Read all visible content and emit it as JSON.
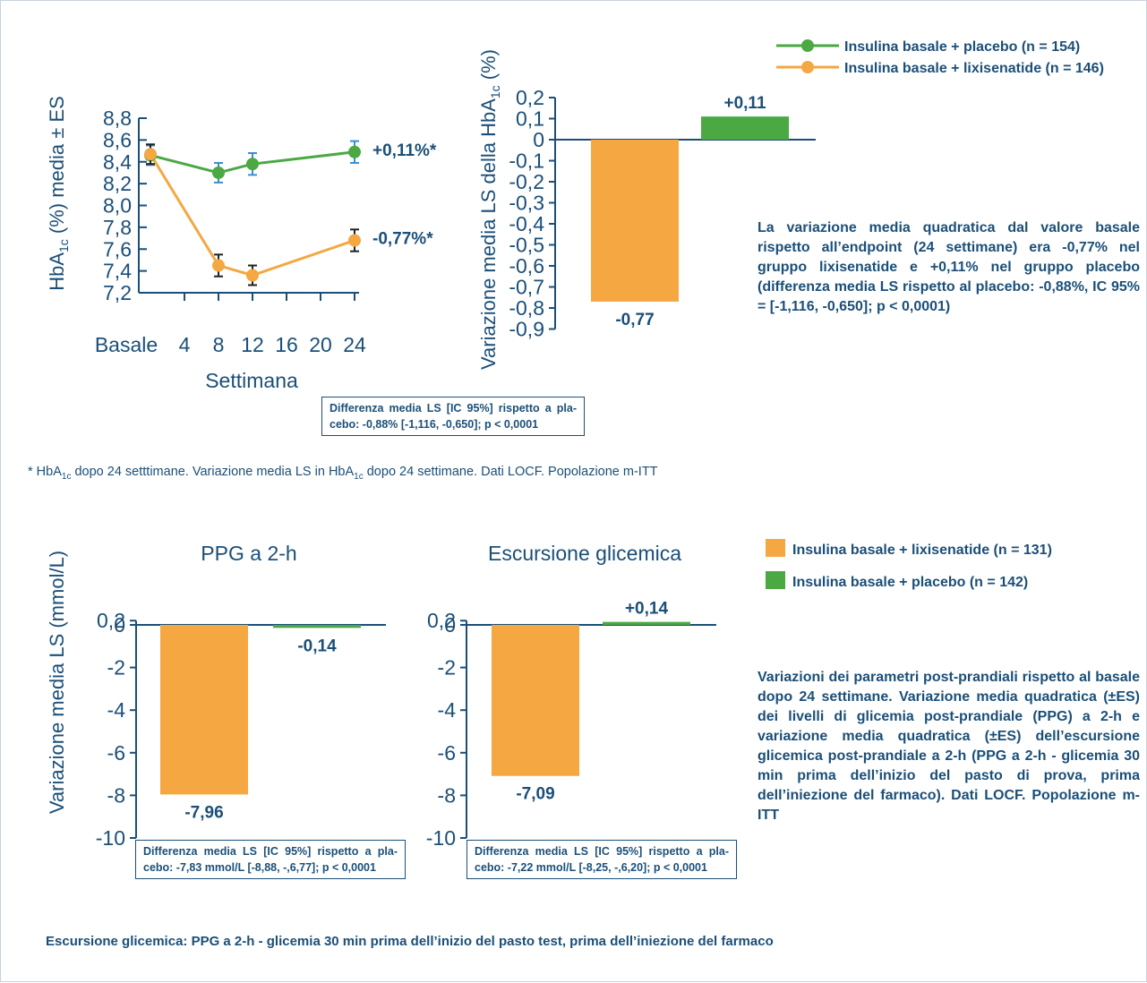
{
  "colors": {
    "green": "#4ba843",
    "orange": "#f5a742",
    "navy": "#1b4f78",
    "errbar": "#3a8fd0"
  },
  "legend_top": [
    {
      "label": "Insulina basale + placebo (n = 154)",
      "color": "#4ba843"
    },
    {
      "label": "Insulina basale + lixisenatide (n = 146)",
      "color": "#f5a742"
    }
  ],
  "legend_bottom": [
    {
      "label": "Insulina basale + lixisenatide (n = 131)",
      "color": "#f5a742"
    },
    {
      "label": "Insulina basale + placebo (n = 142)",
      "color": "#4ba843"
    }
  ],
  "chart_data": [
    {
      "type": "line",
      "xlabel": "Settimana",
      "ylabel": "HbA1c (%) media ± ES",
      "x_ticks": [
        "Basale",
        "4",
        "8",
        "12",
        "16",
        "20",
        "24"
      ],
      "y_ticks": [
        "8,8",
        "8,6",
        "8,4",
        "8,2",
        "8,0",
        "7,8",
        "7,6",
        "7,4",
        "7,2"
      ],
      "ylim": [
        7.2,
        8.8
      ],
      "xlim": [
        0,
        24
      ],
      "series": [
        {
          "name": "Insulina basale + placebo (n = 154)",
          "x": [
            0,
            8,
            12,
            24
          ],
          "y": [
            8.46,
            8.3,
            8.38,
            8.49
          ],
          "err": [
            0.09,
            0.09,
            0.1,
            0.1
          ],
          "end_label": "+0,11%*"
        },
        {
          "name": "Insulina basale + lixisenatide (n = 146)",
          "x": [
            0,
            8,
            12,
            24
          ],
          "y": [
            8.47,
            7.45,
            7.36,
            7.68
          ],
          "err": [
            0.09,
            0.1,
            0.09,
            0.1
          ],
          "end_label": "-0,77%*"
        }
      ]
    },
    {
      "type": "bar",
      "ylabel": "Variazione media LS della HbA1c (%)",
      "y_ticks": [
        "0,2",
        "0,1",
        "0",
        "-0,1",
        "-0,2",
        "-0,3",
        "-0,4",
        "-0,5",
        "-0,6",
        "-0,7",
        "-0,8",
        "-0,9"
      ],
      "ylim": [
        -0.9,
        0.2
      ],
      "values": [
        -0.77,
        0.11
      ],
      "value_labels": [
        "-0,77",
        "+0,11"
      ]
    },
    {
      "type": "bar",
      "title": "PPG a 2-h",
      "ylabel": "Variazione media LS (mmol/L)",
      "y_ticks": [
        "0,2",
        "0",
        "-2",
        "-4",
        "-6",
        "-8",
        "-10"
      ],
      "ylim": [
        -10,
        0.2
      ],
      "values": [
        -7.96,
        -0.14
      ],
      "value_labels": [
        "-7,96",
        "-0,14"
      ]
    },
    {
      "type": "bar",
      "title": "Escursione glicemica",
      "y_ticks": [
        "0,2",
        "0",
        "-2",
        "-4",
        "-6",
        "-8",
        "-10"
      ],
      "ylim": [
        -10,
        0.2
      ],
      "values": [
        -7.09,
        0.14
      ],
      "value_labels": [
        "-7,09",
        "+0,14"
      ]
    }
  ],
  "boxes": {
    "top": "Differenza media LS [IC 95%] rispetto a pla-cebo: -0,88% [-1,116, -0,650]; p < 0,0001",
    "ppg": "Differenza media LS [IC 95%] rispetto a pla-cebo: -7,83 mmol/L [-8,88, -,6,77]; p < 0,0001",
    "esc": "Differenza media LS [IC 95%] rispetto a pla-cebo: -7,22 mmol/L [-8,25, -,6,20]; p < 0,0001"
  },
  "paragraphs": {
    "top": "La variazione media quadratica dal valore basale rispetto all’endpoint (24 settimane) era -0,77% nel gruppo lixisenatide e +0,11% nel gruppo placebo (differenza media LS rispetto al placebo: -0,88%, IC 95% = [-1,116, -0,650]; p < 0,0001)",
    "bottom": "Variazioni dei parametri post-prandiali rispetto al basale dopo 24 settimane. Variazione media quadratica (±ES) dei livelli di glicemia post-prandiale (PPG) a 2-h e variazione media quadratica (±ES) dell’escursione glicemica post-prandiale a 2-h (PPG a 2-h - glicemia 30 min prima dell’inizio del pasto di prova, prima dell’iniezione del farmaco). Dati LOCF. Popolazione m-ITT"
  },
  "footnote": {
    "a": "* HbA",
    "sub1": "1c",
    "b": " dopo 24 setttimane. Variazione media LS in HbA",
    "sub2": "1c",
    "c": " dopo 24 settimane. Dati LOCF. Popolazione m-ITT"
  },
  "bottom_note": "Escursione glicemica: PPG a 2-h - glicemia 30 min prima dell’inizio del pasto test, prima dell’iniezione del farmaco"
}
